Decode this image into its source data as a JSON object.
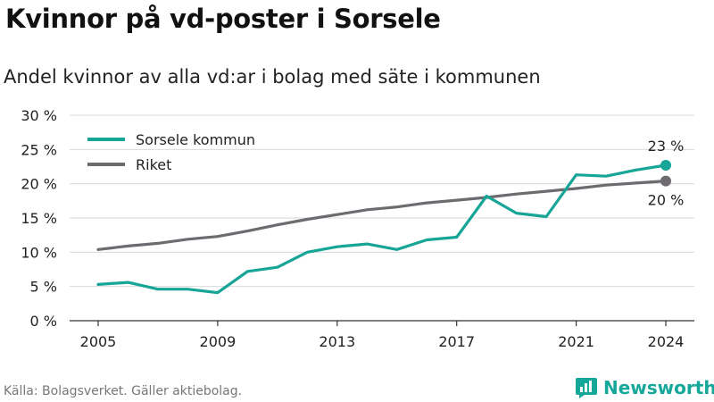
{
  "header": {
    "title": "Kvinnor på vd-poster i Sorsele",
    "subtitle": "Andel kvinnor av alla vd:ar i bolag med säte i kommunen"
  },
  "footer": {
    "source": "Källa: Bolagsverket. Gäller aktiebolag.",
    "brand": "Newsworthy",
    "brand_icon": "bar-chart-logo-icon",
    "brand_color": "#15a89a"
  },
  "chart_data": {
    "type": "line",
    "title": "Kvinnor på vd-poster i Sorsele",
    "subtitle": "Andel kvinnor av alla vd:ar i bolag med säte i kommunen",
    "x": [
      2005,
      2006,
      2007,
      2008,
      2009,
      2010,
      2011,
      2012,
      2013,
      2014,
      2015,
      2016,
      2017,
      2018,
      2019,
      2020,
      2021,
      2022,
      2023,
      2024
    ],
    "x_ticks": [
      "2005",
      "2009",
      "2013",
      "2017",
      "2021",
      "2024"
    ],
    "y_ticks": [
      "0 %",
      "5 %",
      "10 %",
      "15 %",
      "20 %",
      "25 %",
      "30 %"
    ],
    "ylim": [
      0,
      30
    ],
    "grid": true,
    "legend_position": "top-left",
    "series": [
      {
        "name": "Sorsele kommun",
        "color": "#16a596",
        "values": [
          5.3,
          5.6,
          4.6,
          4.6,
          4.1,
          7.2,
          7.8,
          10.0,
          10.8,
          11.2,
          10.4,
          11.8,
          12.2,
          18.2,
          15.7,
          15.2,
          21.3,
          21.1,
          22.0,
          22.7
        ],
        "end_label": "23 %"
      },
      {
        "name": "Riket",
        "color": "#6d6a70",
        "values": [
          10.4,
          10.9,
          11.3,
          11.9,
          12.3,
          13.1,
          14.0,
          14.8,
          15.5,
          16.2,
          16.6,
          17.2,
          17.6,
          18.0,
          18.5,
          18.9,
          19.3,
          19.8,
          20.1,
          20.4
        ],
        "end_label": "20 %"
      }
    ]
  }
}
